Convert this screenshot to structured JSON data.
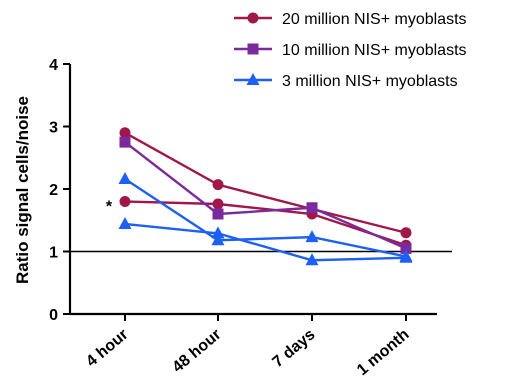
{
  "chart_data": {
    "type": "line",
    "categories": [
      "4 hour",
      "48 hour",
      "7 days",
      "1 month"
    ],
    "ylabel": "Ratio signal cells/noise",
    "xlabel": "",
    "ylim": [
      0,
      4
    ],
    "yticks": [
      "0",
      "1",
      "2",
      "3",
      "4"
    ],
    "reference_line": 1.0,
    "legend_position": "top-right",
    "groups": [
      {
        "name": "20 million NIS+ myoblasts",
        "color": "#A0184A",
        "marker": "circle",
        "lines": [
          [
            2.9,
            2.07,
            1.68,
            1.3
          ],
          [
            1.8,
            1.76,
            1.6,
            1.1
          ]
        ]
      },
      {
        "name": "10 million NIS+ myoblasts",
        "color": "#7A2A9C",
        "marker": "square",
        "lines": [
          [
            2.75,
            1.6,
            1.7,
            1.05
          ]
        ]
      },
      {
        "name": "3 million NIS+ myoblasts",
        "color": "#1E60F2",
        "marker": "triangle",
        "lines": [
          [
            2.16,
            1.18,
            1.23,
            0.92
          ],
          [
            1.44,
            1.29,
            0.86,
            0.9
          ]
        ]
      }
    ],
    "annotations": [
      {
        "text": "*",
        "x": "4 hour",
        "y": 1.8
      }
    ]
  }
}
